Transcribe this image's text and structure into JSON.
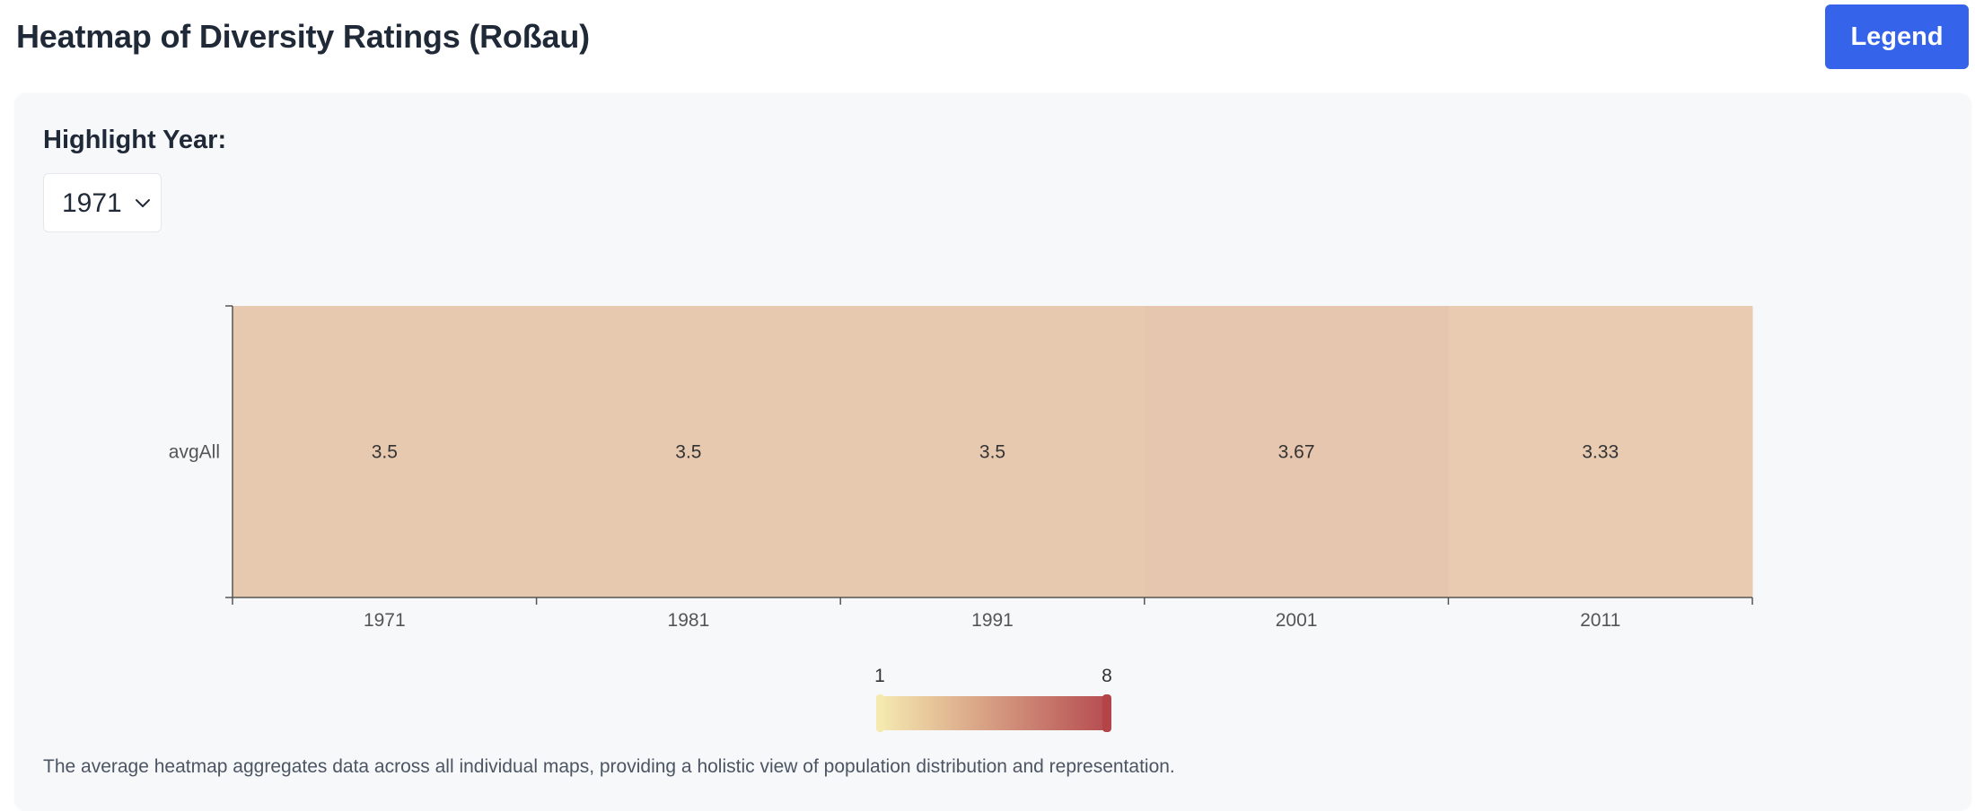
{
  "header": {
    "title": "Heatmap of Diversity Ratings (Roßau)",
    "legend_button_label": "Legend"
  },
  "controls": {
    "highlight_label": "Highlight Year:",
    "selected_year": "1971"
  },
  "chart_data": {
    "type": "heatmap",
    "x": [
      "1971",
      "1981",
      "1991",
      "2001",
      "2011"
    ],
    "y": [
      "avgAll"
    ],
    "values": [
      [
        3.5,
        3.5,
        3.5,
        3.67,
        3.33
      ]
    ],
    "highlighted_x": "1971",
    "color_scale": {
      "min": 1,
      "max": 8,
      "min_color": "#f5e6a3",
      "max_color": "#b34448"
    }
  },
  "description": "The average heatmap aggregates data across all individual maps, providing a holistic view of population distribution and representation."
}
